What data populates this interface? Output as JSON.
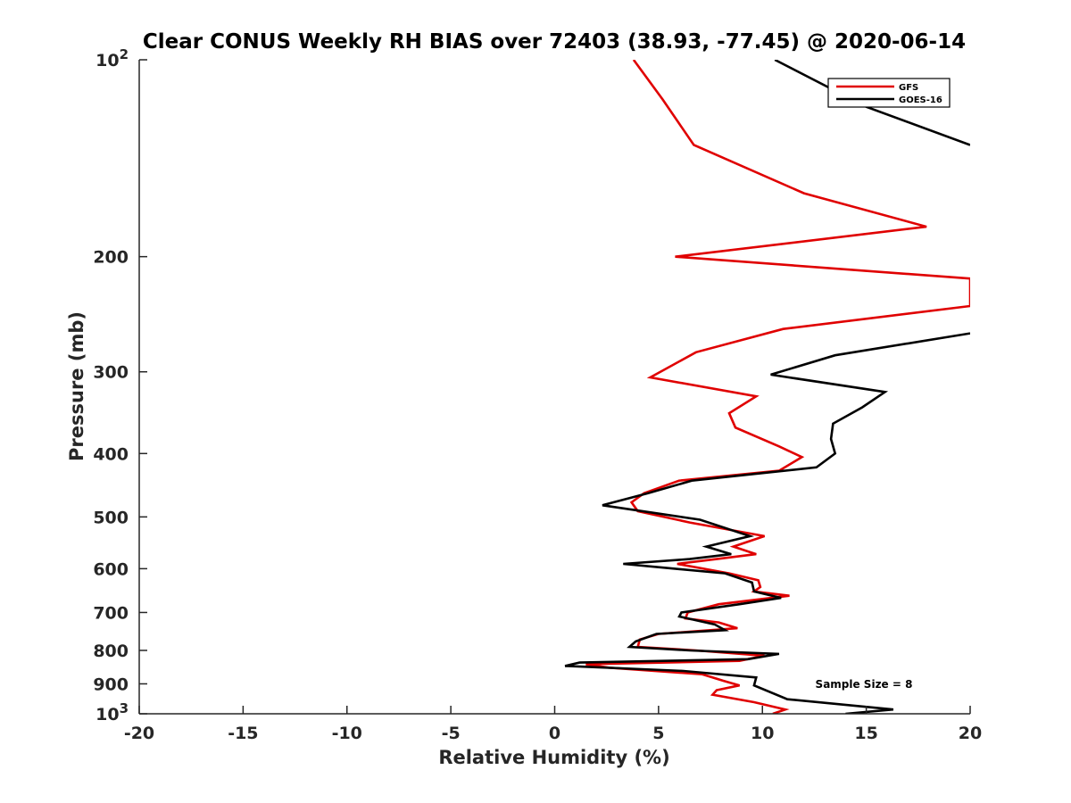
{
  "chart_data": {
    "type": "line",
    "title": "Clear CONUS Weekly RH BIAS over 72403 (38.93, -77.45) @ 2020-06-14",
    "xlabel": "Relative Humidity (%)",
    "ylabel": "Pressure (mb)",
    "xlim": [
      -20,
      20
    ],
    "ylim": [
      100,
      1000
    ],
    "y_scale": "log",
    "y_reversed": true,
    "grid": false,
    "legend_position": "top-right",
    "x_ticks": [
      "-20",
      "-15",
      "-10",
      "-5",
      "0",
      "5",
      "10",
      "15",
      "20"
    ],
    "y_ticks": [
      {
        "value": 100,
        "base": "10",
        "exp": "2"
      },
      {
        "value": 200,
        "label": "200"
      },
      {
        "value": 300,
        "label": "300"
      },
      {
        "value": 400,
        "label": "400"
      },
      {
        "value": 500,
        "label": "500"
      },
      {
        "value": 600,
        "label": "600"
      },
      {
        "value": 700,
        "label": "700"
      },
      {
        "value": 800,
        "label": "800"
      },
      {
        "value": 900,
        "label": "900"
      },
      {
        "value": 1000,
        "base": "10",
        "exp": "3"
      }
    ],
    "series": [
      {
        "name": "GFS",
        "color": "#e00000",
        "points": [
          [
            3.8,
            100
          ],
          [
            5.2,
            115
          ],
          [
            6.7,
            135
          ],
          [
            12.0,
            160
          ],
          [
            17.9,
            180
          ],
          [
            5.8,
            200
          ],
          [
            20.0,
            216
          ],
          [
            20.0,
            238
          ],
          [
            11.0,
            258
          ],
          [
            6.8,
            280
          ],
          [
            4.6,
            306
          ],
          [
            9.7,
            327
          ],
          [
            8.4,
            347
          ],
          [
            8.7,
            365
          ],
          [
            10.8,
            390
          ],
          [
            11.9,
            405
          ],
          [
            10.8,
            425
          ],
          [
            6.0,
            440
          ],
          [
            4.3,
            460
          ],
          [
            3.7,
            475
          ],
          [
            4.0,
            490
          ],
          [
            6.5,
            510
          ],
          [
            10.1,
            535
          ],
          [
            8.6,
            555
          ],
          [
            9.7,
            570
          ],
          [
            7.8,
            580
          ],
          [
            5.9,
            590
          ],
          [
            8.4,
            610
          ],
          [
            9.8,
            625
          ],
          [
            9.9,
            640
          ],
          [
            9.6,
            650
          ],
          [
            11.3,
            660
          ],
          [
            7.9,
            680
          ],
          [
            6.4,
            700
          ],
          [
            6.3,
            715
          ],
          [
            7.9,
            725
          ],
          [
            8.8,
            740
          ],
          [
            5.0,
            755
          ],
          [
            4.1,
            770
          ],
          [
            4.0,
            790
          ],
          [
            6.8,
            800
          ],
          [
            10.1,
            815
          ],
          [
            8.9,
            830
          ],
          [
            1.5,
            840
          ],
          [
            2.6,
            850
          ],
          [
            7.1,
            870
          ],
          [
            8.1,
            890
          ],
          [
            8.9,
            905
          ],
          [
            7.8,
            920
          ],
          [
            7.6,
            935
          ],
          [
            9.6,
            960
          ],
          [
            11.1,
            985
          ],
          [
            10.5,
            1000
          ]
        ]
      },
      {
        "name": "GOES-16",
        "color": "#000000",
        "points": [
          [
            10.6,
            100
          ],
          [
            15.0,
            118
          ],
          [
            20.0,
            135
          ],
          [
            null,
            240
          ],
          [
            20.0,
            262
          ],
          [
            13.5,
            283
          ],
          [
            10.4,
            303
          ],
          [
            15.9,
            322
          ],
          [
            14.8,
            340
          ],
          [
            13.4,
            360
          ],
          [
            13.3,
            380
          ],
          [
            13.5,
            400
          ],
          [
            12.6,
            420
          ],
          [
            6.6,
            440
          ],
          [
            4.5,
            460
          ],
          [
            2.3,
            480
          ],
          [
            7.0,
            505
          ],
          [
            9.4,
            535
          ],
          [
            7.3,
            555
          ],
          [
            8.5,
            570
          ],
          [
            6.5,
            580
          ],
          [
            3.3,
            590
          ],
          [
            8.2,
            610
          ],
          [
            9.5,
            630
          ],
          [
            9.6,
            650
          ],
          [
            10.9,
            665
          ],
          [
            8.9,
            680
          ],
          [
            6.1,
            700
          ],
          [
            6.0,
            710
          ],
          [
            7.7,
            730
          ],
          [
            8.2,
            745
          ],
          [
            4.9,
            755
          ],
          [
            3.9,
            775
          ],
          [
            3.6,
            790
          ],
          [
            6.5,
            800
          ],
          [
            10.8,
            810
          ],
          [
            9.3,
            825
          ],
          [
            1.2,
            835
          ],
          [
            0.5,
            845
          ],
          [
            6.2,
            860
          ],
          [
            9.7,
            880
          ],
          [
            9.6,
            905
          ],
          [
            11.2,
            950
          ],
          [
            16.3,
            985
          ],
          [
            14.0,
            1000
          ]
        ]
      }
    ],
    "annotations": [
      {
        "text": "Sample Size = 8",
        "x": 15.5,
        "y": 900
      }
    ]
  }
}
